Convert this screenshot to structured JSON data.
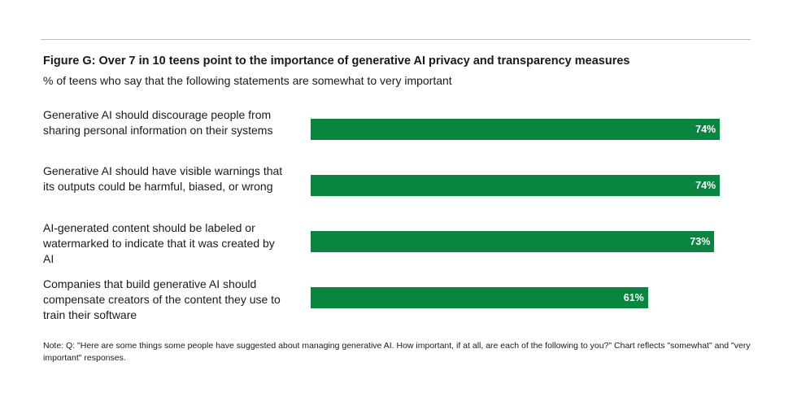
{
  "chart_data": {
    "type": "bar",
    "orientation": "horizontal",
    "title": "Figure G: Over 7 in 10 teens point to the importance of generative AI privacy and transparency measures",
    "subtitle": "% of teens who say that the following statements are somewhat to very important",
    "categories": [
      "Generative AI should discourage people from sharing personal information on their systems",
      "Generative AI should have visible warnings that its outputs could be harmful, biased, or wrong",
      "AI-generated content should be labeled or watermarked to indicate that it was created by AI",
      "Companies that build generative AI should compensate creators of the content they use to train their software"
    ],
    "values": [
      74,
      74,
      73,
      61
    ],
    "data_labels": [
      "74%",
      "74%",
      "73%",
      "61%"
    ],
    "xlim": [
      0,
      100
    ],
    "grid": false,
    "bar_color": "#098540",
    "note": "Note: Q: \"Here are some things some people have suggested about managing generative AI. How important, if at all, are each of the following to you?\" Chart reflects \"somewhat\" and \"very important\" responses."
  }
}
